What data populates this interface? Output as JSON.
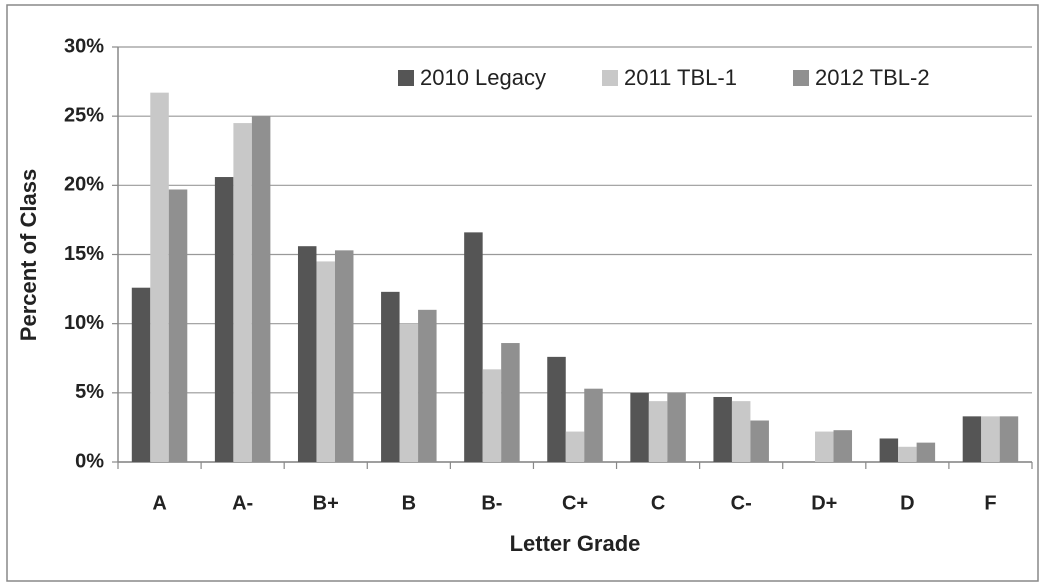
{
  "chart_data": {
    "type": "bar",
    "x_label": "Letter Grade",
    "y_label": "Percent of Class",
    "categories": [
      "A",
      "A-",
      "B+",
      "B",
      "B-",
      "C+",
      "C",
      "C-",
      "D+",
      "D",
      "F"
    ],
    "series": [
      {
        "name": "2010 Legacy",
        "color": "#555555",
        "values": [
          12.6,
          20.6,
          15.6,
          12.3,
          16.6,
          7.6,
          5.0,
          4.7,
          0,
          1.7,
          3.3
        ]
      },
      {
        "name": "2011 TBL-1",
        "color": "#c8c8c8",
        "values": [
          26.7,
          24.5,
          14.5,
          10.0,
          6.7,
          2.2,
          4.4,
          4.4,
          2.2,
          1.1,
          3.3
        ]
      },
      {
        "name": "2012 TBL-2",
        "color": "#909090",
        "values": [
          19.7,
          25.0,
          15.3,
          11.0,
          8.6,
          5.3,
          5.0,
          3.0,
          2.3,
          1.4,
          3.3
        ]
      }
    ],
    "ylim": [
      0,
      30
    ],
    "yticks": [
      {
        "value": 0,
        "label": "0%"
      },
      {
        "value": 5,
        "label": "5%"
      },
      {
        "value": 10,
        "label": "10%"
      },
      {
        "value": 15,
        "label": "15%"
      },
      {
        "value": 20,
        "label": "20%"
      },
      {
        "value": 25,
        "label": "25%"
      },
      {
        "value": 30,
        "label": "30%"
      }
    ],
    "grid": true,
    "legend": "top-right"
  }
}
